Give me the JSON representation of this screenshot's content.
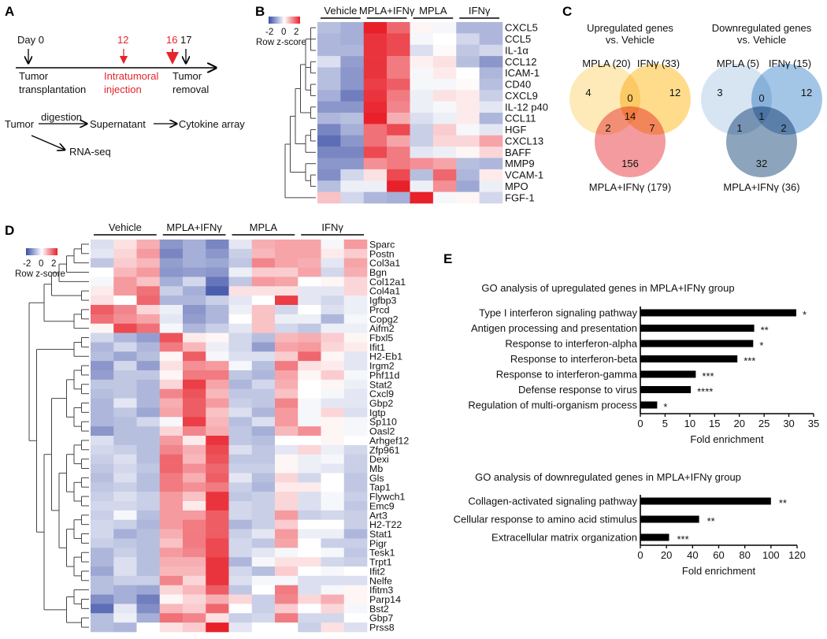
{
  "panel_labels": {
    "a": "A",
    "b": "B",
    "c": "C",
    "d": "D",
    "e": "E"
  },
  "panel_a": {
    "day0": "Day 0",
    "day12": "12",
    "day16": "16",
    "day17": "17",
    "transplant_1": "Tumor",
    "transplant_2": "transplantation",
    "injection_1": "Intratumoral",
    "injection_2": "injection",
    "removal_1": "Tumor",
    "removal_2": "removal",
    "flow_tumor": "Tumor",
    "flow_digestion": "digestion",
    "flow_supernatant": "Supernatant",
    "flow_cytokine": "Cytokine array",
    "flow_rnaseq": "RNA-seq"
  },
  "legend": {
    "min": "-2",
    "mid": "0",
    "max": "2",
    "title": "Row z-score"
  },
  "colors": {
    "low": "#3a4ea6",
    "mid": "#ffffff",
    "high": "#e8202a",
    "accent_red": "#e4252b"
  },
  "panel_c": {
    "up": {
      "title_1": "Upregulated genes",
      "title_2": "vs. Vehicle",
      "set_a": "MPLA (20)",
      "set_b": "IFNγ (33)",
      "set_c": "MPLA+IFNγ (179)",
      "only_a": "4",
      "ab": "0",
      "only_b": "12",
      "abc": "14",
      "ac": "2",
      "bc": "7",
      "only_c": "156",
      "colors": [
        "#fce3a0",
        "#fdd065",
        "#f07a80"
      ]
    },
    "down": {
      "title_1": "Downregulated genes",
      "title_2": "vs. Vehicle",
      "set_a": "MPLA (5)",
      "set_b": "IFNγ (15)",
      "set_c": "MPLA+IFNγ (36)",
      "only_a": "3",
      "ab": "0",
      "only_b": "12",
      "abc": "1",
      "ac": "1",
      "bc": "2",
      "only_c": "32",
      "colors": [
        "#c9dcef",
        "#84b3dd",
        "#6585a6"
      ]
    }
  },
  "chart_data": [
    {
      "type": "heatmap",
      "panel": "B",
      "groups": [
        "Vehicle",
        "MPLA+IFNγ",
        "MPLA",
        "IFNγ"
      ],
      "replicates_per_group": 2,
      "rows": [
        "CXCL5",
        "CCL5",
        "IL-1α",
        "CCL12",
        "ICAM-1",
        "CD40",
        "CXCL9",
        "IL-12 p40",
        "CCL11",
        "HGF",
        "CXCL13",
        "BAFF",
        "MMP9",
        "VCAM-1",
        "MPO",
        "FGF-1"
      ],
      "values": [
        [
          -0.8,
          -1,
          2.2,
          1.5,
          0.1,
          -0.1,
          -0.9,
          -0.9
        ],
        [
          -0.9,
          -1,
          2,
          1.8,
          -0.1,
          0,
          -0.5,
          -0.9
        ],
        [
          -0.9,
          -0.9,
          2,
          1.8,
          -0.4,
          0.05,
          -0.7,
          -0.5
        ],
        [
          -0.4,
          -1.2,
          2,
          1.3,
          0.15,
          0.3,
          -0.8,
          -1.3
        ],
        [
          -0.8,
          -1.3,
          2,
          1.3,
          -0.1,
          0.2,
          0,
          -0.9
        ],
        [
          -0.8,
          -1.3,
          1.9,
          1.6,
          -0.1,
          -0.1,
          0.05,
          -0.8
        ],
        [
          -1,
          -1.6,
          2,
          1.3,
          -0.2,
          0.3,
          0.2,
          -0.6
        ],
        [
          -1.3,
          -1.3,
          2.1,
          1.2,
          -0.2,
          -0.1,
          0.2,
          -0.3
        ],
        [
          -0.9,
          -0.8,
          2.5,
          0.8,
          -0.4,
          -0.2,
          0.2,
          -0.9
        ],
        [
          -1.5,
          -1,
          1.4,
          1.8,
          -0.6,
          0.5,
          -0.1,
          -0.3
        ],
        [
          -1.8,
          -1.3,
          1.4,
          0.9,
          -0.6,
          0.4,
          0.4,
          0.9
        ],
        [
          -1.5,
          -1.5,
          1.8,
          1.3,
          -0.3,
          -0.2,
          0.1,
          0.4
        ],
        [
          -1.3,
          -1.3,
          1.1,
          1.3,
          1.1,
          0.9,
          -0.8,
          -0.9
        ],
        [
          -1.4,
          -0.5,
          0.3,
          1.8,
          -0.8,
          1.5,
          -0.9,
          0.2
        ],
        [
          -0.8,
          -0.2,
          -0.2,
          2.4,
          -0.2,
          1.1,
          -1.1,
          -0.2
        ],
        [
          0.6,
          -0.5,
          -0.9,
          -1,
          2.4,
          -0.1,
          0.1,
          -0.5
        ]
      ],
      "color_range": [
        -2,
        2
      ],
      "legend_title": "Row z-score"
    },
    {
      "type": "heatmap",
      "panel": "D",
      "groups": [
        "Vehicle",
        "MPLA+IFNγ",
        "MPLA",
        "IFNγ"
      ],
      "replicates_per_group": 3,
      "rows": [
        "Sparc",
        "Postn",
        "Col3a1",
        "Bgn",
        "Col12a1",
        "Col4a1",
        "Igfbp3",
        "Prcd",
        "Copg2",
        "Aifm2",
        "Fbxl5",
        "Ifit1",
        "H2-Eb1",
        "Irgm2",
        "Phf11d",
        "Stat2",
        "Cxcl9",
        "Gbp2",
        "Igtp",
        "Sp110",
        "Oasl2",
        "Arhgef12",
        "Zfp961",
        "Dexi",
        "Mb",
        "Gls",
        "Tap1",
        "Flywch1",
        "Emc9",
        "Art3",
        "H2-T22",
        "Stat1",
        "Pigr",
        "Tesk1",
        "Trpt1",
        "Ifit2",
        "Nelfe",
        "Ifitm3",
        "Parp14",
        "Bst2",
        "Gbp7",
        "Prss8"
      ],
      "values": [
        [
          -0.4,
          0.3,
          0.8,
          -1.3,
          -1,
          -1.5,
          -0.3,
          0.8,
          0.9,
          0.9,
          -0.1,
          1
        ],
        [
          -0.3,
          0.4,
          1,
          -1.5,
          -1,
          -1.3,
          -0.6,
          0.7,
          0.9,
          0.9,
          0.2,
          0.5
        ],
        [
          -0.7,
          0.5,
          0.7,
          -1.2,
          -1,
          -1.1,
          -0.7,
          1.2,
          0.9,
          0.8,
          -0.3,
          0.9
        ],
        [
          0,
          0.7,
          1,
          -1.3,
          -1.2,
          -1.3,
          -0.2,
          0.5,
          0.5,
          0.9,
          -0.5,
          0.8
        ],
        [
          -0.1,
          1,
          0.6,
          -1,
          -0.5,
          -1.7,
          -0.7,
          1,
          0.9,
          0,
          0.1,
          0.4
        ],
        [
          0.2,
          1,
          1.4,
          -0.6,
          -1,
          -2,
          0.3,
          0.3,
          0.3,
          -0.3,
          -0.3,
          0.4
        ],
        [
          0.3,
          0,
          1.5,
          -0.9,
          -0.9,
          -0.6,
          -0.3,
          0,
          1.9,
          -0.3,
          -0.5,
          -0.2
        ],
        [
          1.6,
          1.2,
          0.4,
          -0.2,
          -1.3,
          -0.9,
          -0.2,
          0.6,
          -0.5,
          0,
          -0.4,
          -0.2
        ],
        [
          1.4,
          1.1,
          0.9,
          -0.3,
          -1.2,
          -0.9,
          0,
          0.6,
          -0.2,
          -0.2,
          -0.9,
          -0.1
        ],
        [
          0.1,
          1.8,
          1.4,
          -0.1,
          -0.9,
          -0.6,
          -0.3,
          0.6,
          -0.5,
          -0.7,
          -0.2,
          -0.2
        ],
        [
          -0.5,
          -0.9,
          -1.2,
          1.7,
          0.2,
          0.1,
          -0.5,
          -0.8,
          0.7,
          0.8,
          0.5,
          0.1
        ],
        [
          -0.9,
          -0.5,
          -0.9,
          1.3,
          0.7,
          -0.2,
          -0.5,
          -1.2,
          0.9,
          1,
          0.4,
          0.2
        ],
        [
          -0.8,
          -1.1,
          -0.8,
          0.1,
          1.6,
          -0.1,
          -0.4,
          -0.4,
          0.5,
          1.5,
          0.1,
          -0.3
        ],
        [
          -1.3,
          -0.5,
          -1.2,
          0.3,
          1.1,
          1,
          -0.1,
          -0.8,
          1.3,
          0.3,
          0.2,
          -0.3
        ],
        [
          -1.2,
          -0.7,
          -0.7,
          0.1,
          1.3,
          1.3,
          -0.7,
          -0.9,
          0.9,
          0.1,
          0.5,
          -0.1
        ],
        [
          -0.7,
          -0.7,
          -0.9,
          0.4,
          1.9,
          0.9,
          -0.9,
          -0.5,
          0.8,
          0,
          0.1,
          -0.2
        ],
        [
          -0.8,
          -0.7,
          -0.9,
          1.2,
          1.7,
          0.7,
          -0.7,
          -0.7,
          0.6,
          0,
          -0.1,
          -0.3
        ],
        [
          -0.9,
          -0.3,
          -0.9,
          0.8,
          1.6,
          1,
          -0.6,
          -0.7,
          1.2,
          -0.1,
          -0.3,
          -0.3
        ],
        [
          -0.9,
          -0.7,
          -1.1,
          0.9,
          1.6,
          0.6,
          -0.4,
          -0.9,
          1,
          -0.1,
          0.4,
          -0.4
        ],
        [
          -0.9,
          -0.8,
          -0.5,
          -0.1,
          1.9,
          0.7,
          -0.8,
          -0.4,
          1,
          -0.1,
          0.1,
          -0.1
        ],
        [
          -1.3,
          -0.8,
          -0.8,
          0.4,
          1.2,
          0.8,
          -0.7,
          -1,
          0.7,
          1.1,
          0.1,
          -0.1
        ],
        [
          -0.4,
          -0.8,
          -0.8,
          1,
          0.2,
          2,
          -0.7,
          -0.8,
          0,
          0,
          0.1,
          0
        ],
        [
          -0.5,
          -0.6,
          -0.8,
          1.2,
          0.8,
          1.8,
          -0.4,
          -0.7,
          -0.3,
          0.4,
          -0.2,
          -0.5
        ],
        [
          -0.6,
          -0.4,
          -0.8,
          1.5,
          0.7,
          1.7,
          -0.7,
          -0.7,
          0.1,
          -0.2,
          -0.1,
          -0.6
        ],
        [
          -0.7,
          -0.5,
          -0.7,
          1.5,
          1.1,
          1.5,
          -0.6,
          -0.6,
          0.1,
          -0.2,
          -0.3,
          -0.6
        ],
        [
          -0.8,
          -0.4,
          -0.8,
          1.3,
          0.8,
          1.6,
          -0.3,
          -0.8,
          0.4,
          -0.5,
          0,
          -0.7
        ],
        [
          -0.7,
          -0.6,
          -0.8,
          1.3,
          1.1,
          1.3,
          -0.6,
          -0.9,
          0.2,
          0.2,
          0,
          -0.7
        ],
        [
          -0.6,
          -0.4,
          -0.6,
          1,
          0.6,
          2,
          -0.7,
          -0.6,
          0.4,
          -0.4,
          -0.1,
          -0.6
        ],
        [
          -0.5,
          -0.5,
          -0.6,
          1,
          0.2,
          2,
          -0.5,
          -0.6,
          0.4,
          -0.4,
          -0.1,
          -0.7
        ],
        [
          -0.6,
          -0.1,
          -0.8,
          1,
          1,
          1.6,
          -0.5,
          -0.6,
          1,
          -0.6,
          -0.5,
          -0.6
        ],
        [
          -0.5,
          -0.6,
          -0.9,
          1,
          1.3,
          1.6,
          -0.9,
          -0.6,
          0.5,
          0,
          0,
          -0.6
        ],
        [
          -0.5,
          -1,
          -0.8,
          0.8,
          1.3,
          1.6,
          -0.6,
          -0.3,
          1,
          -0.2,
          -0.2,
          -0.9
        ],
        [
          -0.6,
          -0.7,
          -0.8,
          0.6,
          1.3,
          1.8,
          -0.5,
          -0.7,
          0.9,
          0,
          -0.6,
          -0.6
        ],
        [
          -0.9,
          -0.6,
          -0.8,
          1,
          1.2,
          1.8,
          -0.5,
          -0.3,
          -0.1,
          0,
          -0.1,
          -0.7
        ],
        [
          -0.9,
          -0.4,
          -0.8,
          0.8,
          0.8,
          2,
          -0.9,
          -0.1,
          0.3,
          0.3,
          -0.5,
          -0.6
        ],
        [
          -1.1,
          -0.4,
          -0.8,
          0.7,
          0.7,
          2,
          -0.5,
          -0.8,
          0.5,
          0,
          -0.1,
          0
        ],
        [
          -0.8,
          -0.6,
          -0.6,
          1.2,
          0.4,
          2,
          -0.4,
          -0.1,
          -0.1,
          -0.4,
          -0.4,
          -0.4
        ],
        [
          -0.8,
          -1,
          -1.1,
          0.4,
          0.7,
          1.6,
          -0.7,
          0,
          1.3,
          -0.4,
          -0.1,
          0.1
        ],
        [
          -1.4,
          -1,
          -1.6,
          0.1,
          0.4,
          0.8,
          0.4,
          -0.6,
          1.2,
          0.4,
          0.8,
          0.1
        ],
        [
          -1.8,
          -0.3,
          -1.4,
          0.7,
          0.5,
          1.5,
          0,
          -0.6,
          0.5,
          0,
          0.4,
          -0.1
        ],
        [
          -0.8,
          -0.2,
          -1,
          1.4,
          1.2,
          0.3,
          -0.6,
          -0.5,
          1.3,
          -0.5,
          -0.5,
          0
        ],
        [
          -0.8,
          -0.9,
          0,
          0.3,
          0.5,
          2.2,
          -0.3,
          0,
          0,
          -0.6,
          0.3,
          -0.4
        ]
      ],
      "color_range": [
        -2,
        2
      ],
      "legend_title": "Row z-score"
    },
    {
      "type": "bar",
      "orientation": "horizontal",
      "panel": "E",
      "title": "GO analysis of upregulated genes in MPLA+IFNγ group",
      "categories": [
        "Type I interferon signaling pathway",
        "Antigen processing and presentation",
        "Response to interferon-alpha",
        "Response to interferon-beta",
        "Response to interferon-gamma",
        "Defense response to virus",
        "Regulation of multi-organism process"
      ],
      "values": [
        31.5,
        23,
        22.8,
        19.6,
        11.2,
        10.2,
        3.4
      ],
      "significance": [
        "*",
        "**",
        "*",
        "***",
        "***",
        "****",
        "*"
      ],
      "xlabel": "Fold enrichment",
      "xlim": [
        0,
        35
      ],
      "xticks": [
        "0",
        "5",
        "10",
        "15",
        "20",
        "25",
        "30",
        "35"
      ]
    },
    {
      "type": "bar",
      "orientation": "horizontal",
      "panel": "E",
      "title": "GO analysis of downregulated genes in MPLA+IFNγ group",
      "categories": [
        "Collagen-activated signaling pathway",
        "Cellular response to amino acid stimulus",
        "Extracellular matrix organization"
      ],
      "values": [
        100,
        45,
        22
      ],
      "significance": [
        "**",
        "**",
        "***"
      ],
      "xlabel": "Fold enrichment",
      "xlim": [
        0,
        120
      ],
      "xticks": [
        "0",
        "20",
        "40",
        "60",
        "80",
        "100",
        "120"
      ]
    }
  ]
}
